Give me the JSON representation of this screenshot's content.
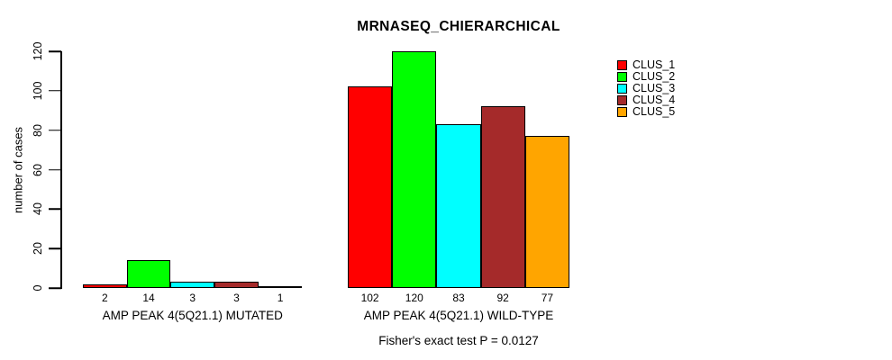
{
  "chart_data": {
    "type": "bar",
    "title": "MRNASEQ_CHIERARCHICAL",
    "ylabel": "number of cases",
    "ylim": [
      0,
      120
    ],
    "yticks": [
      0,
      20,
      40,
      60,
      80,
      100,
      120
    ],
    "grid": false,
    "legend_position": "top-right",
    "categories": [
      "AMP PEAK 4(5Q21.1) MUTATED",
      "AMP PEAK 4(5Q21.1) WILD-TYPE"
    ],
    "series": [
      {
        "name": "CLUS_1",
        "color": "#ff0000",
        "values": [
          2,
          102
        ]
      },
      {
        "name": "CLUS_2",
        "color": "#00ff00",
        "values": [
          14,
          120
        ]
      },
      {
        "name": "CLUS_3",
        "color": "#00ffff",
        "values": [
          3,
          83
        ]
      },
      {
        "name": "CLUS_4",
        "color": "#a52a2a",
        "values": [
          3,
          92
        ]
      },
      {
        "name": "CLUS_5",
        "color": "#ffa500",
        "values": [
          1,
          77
        ]
      }
    ],
    "bar_value_labels": [
      [
        "2",
        "14",
        "3",
        "3",
        "1"
      ],
      [
        "102",
        "120",
        "83",
        "92",
        "77"
      ]
    ],
    "footnote": "Fisher's exact test P = 0.0127"
  }
}
